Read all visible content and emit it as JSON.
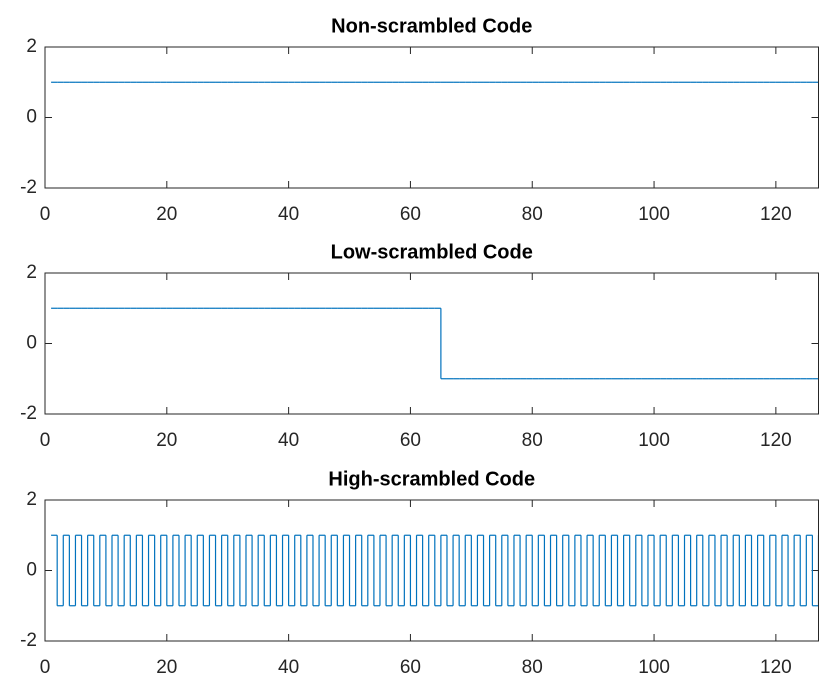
{
  "chart_data": [
    {
      "type": "stairs",
      "title": "Non-scrambled Code",
      "color": "#0072bd",
      "x": [
        1,
        2,
        3,
        4,
        5,
        6,
        7,
        8,
        9,
        10,
        11,
        12,
        13,
        14,
        15,
        16,
        17,
        18,
        19,
        20,
        21,
        22,
        23,
        24,
        25,
        26,
        27,
        28,
        29,
        30,
        31,
        32,
        33,
        34,
        35,
        36,
        37,
        38,
        39,
        40,
        41,
        42,
        43,
        44,
        45,
        46,
        47,
        48,
        49,
        50,
        51,
        52,
        53,
        54,
        55,
        56,
        57,
        58,
        59,
        60,
        61,
        62,
        63,
        64,
        65,
        66,
        67,
        68,
        69,
        70,
        71,
        72,
        73,
        74,
        75,
        76,
        77,
        78,
        79,
        80,
        81,
        82,
        83,
        84,
        85,
        86,
        87,
        88,
        89,
        90,
        91,
        92,
        93,
        94,
        95,
        96,
        97,
        98,
        99,
        100,
        101,
        102,
        103,
        104,
        105,
        106,
        107,
        108,
        109,
        110,
        111,
        112,
        113,
        114,
        115,
        116,
        117,
        118,
        119,
        120,
        121,
        122,
        123,
        124,
        125,
        126,
        127,
        128
      ],
      "values": [
        1,
        1,
        1,
        1,
        1,
        1,
        1,
        1,
        1,
        1,
        1,
        1,
        1,
        1,
        1,
        1,
        1,
        1,
        1,
        1,
        1,
        1,
        1,
        1,
        1,
        1,
        1,
        1,
        1,
        1,
        1,
        1,
        1,
        1,
        1,
        1,
        1,
        1,
        1,
        1,
        1,
        1,
        1,
        1,
        1,
        1,
        1,
        1,
        1,
        1,
        1,
        1,
        1,
        1,
        1,
        1,
        1,
        1,
        1,
        1,
        1,
        1,
        1,
        1,
        1,
        1,
        1,
        1,
        1,
        1,
        1,
        1,
        1,
        1,
        1,
        1,
        1,
        1,
        1,
        1,
        1,
        1,
        1,
        1,
        1,
        1,
        1,
        1,
        1,
        1,
        1,
        1,
        1,
        1,
        1,
        1,
        1,
        1,
        1,
        1,
        1,
        1,
        1,
        1,
        1,
        1,
        1,
        1,
        1,
        1,
        1,
        1,
        1,
        1,
        1,
        1,
        1,
        1,
        1,
        1,
        1,
        1,
        1,
        1,
        1,
        1,
        1,
        1
      ],
      "xlim": [
        0,
        127
      ],
      "xticks": [
        0,
        20,
        40,
        60,
        80,
        100,
        120
      ],
      "ylim": [
        -2,
        2
      ],
      "yticks": [
        -2,
        0,
        2
      ]
    },
    {
      "type": "stairs",
      "title": "Low-scrambled Code",
      "color": "#0072bd",
      "x": [
        1,
        2,
        3,
        4,
        5,
        6,
        7,
        8,
        9,
        10,
        11,
        12,
        13,
        14,
        15,
        16,
        17,
        18,
        19,
        20,
        21,
        22,
        23,
        24,
        25,
        26,
        27,
        28,
        29,
        30,
        31,
        32,
        33,
        34,
        35,
        36,
        37,
        38,
        39,
        40,
        41,
        42,
        43,
        44,
        45,
        46,
        47,
        48,
        49,
        50,
        51,
        52,
        53,
        54,
        55,
        56,
        57,
        58,
        59,
        60,
        61,
        62,
        63,
        64,
        65,
        66,
        67,
        68,
        69,
        70,
        71,
        72,
        73,
        74,
        75,
        76,
        77,
        78,
        79,
        80,
        81,
        82,
        83,
        84,
        85,
        86,
        87,
        88,
        89,
        90,
        91,
        92,
        93,
        94,
        95,
        96,
        97,
        98,
        99,
        100,
        101,
        102,
        103,
        104,
        105,
        106,
        107,
        108,
        109,
        110,
        111,
        112,
        113,
        114,
        115,
        116,
        117,
        118,
        119,
        120,
        121,
        122,
        123,
        124,
        125,
        126,
        127,
        128
      ],
      "values": [
        1,
        1,
        1,
        1,
        1,
        1,
        1,
        1,
        1,
        1,
        1,
        1,
        1,
        1,
        1,
        1,
        1,
        1,
        1,
        1,
        1,
        1,
        1,
        1,
        1,
        1,
        1,
        1,
        1,
        1,
        1,
        1,
        1,
        1,
        1,
        1,
        1,
        1,
        1,
        1,
        1,
        1,
        1,
        1,
        1,
        1,
        1,
        1,
        1,
        1,
        1,
        1,
        1,
        1,
        1,
        1,
        1,
        1,
        1,
        1,
        1,
        1,
        1,
        1,
        -1,
        -1,
        -1,
        -1,
        -1,
        -1,
        -1,
        -1,
        -1,
        -1,
        -1,
        -1,
        -1,
        -1,
        -1,
        -1,
        -1,
        -1,
        -1,
        -1,
        -1,
        -1,
        -1,
        -1,
        -1,
        -1,
        -1,
        -1,
        -1,
        -1,
        -1,
        -1,
        -1,
        -1,
        -1,
        -1,
        -1,
        -1,
        -1,
        -1,
        -1,
        -1,
        -1,
        -1,
        -1,
        -1,
        -1,
        -1,
        -1,
        -1,
        -1,
        -1,
        -1,
        -1,
        -1,
        -1,
        -1,
        -1,
        -1,
        -1,
        -1,
        -1,
        -1,
        -1
      ],
      "xlim": [
        0,
        127
      ],
      "xticks": [
        0,
        20,
        40,
        60,
        80,
        100,
        120
      ],
      "ylim": [
        -2,
        2
      ],
      "yticks": [
        -2,
        0,
        2
      ]
    },
    {
      "type": "stairs",
      "title": "High-scrambled Code",
      "color": "#0072bd",
      "x": [
        1,
        2,
        3,
        4,
        5,
        6,
        7,
        8,
        9,
        10,
        11,
        12,
        13,
        14,
        15,
        16,
        17,
        18,
        19,
        20,
        21,
        22,
        23,
        24,
        25,
        26,
        27,
        28,
        29,
        30,
        31,
        32,
        33,
        34,
        35,
        36,
        37,
        38,
        39,
        40,
        41,
        42,
        43,
        44,
        45,
        46,
        47,
        48,
        49,
        50,
        51,
        52,
        53,
        54,
        55,
        56,
        57,
        58,
        59,
        60,
        61,
        62,
        63,
        64,
        65,
        66,
        67,
        68,
        69,
        70,
        71,
        72,
        73,
        74,
        75,
        76,
        77,
        78,
        79,
        80,
        81,
        82,
        83,
        84,
        85,
        86,
        87,
        88,
        89,
        90,
        91,
        92,
        93,
        94,
        95,
        96,
        97,
        98,
        99,
        100,
        101,
        102,
        103,
        104,
        105,
        106,
        107,
        108,
        109,
        110,
        111,
        112,
        113,
        114,
        115,
        116,
        117,
        118,
        119,
        120,
        121,
        122,
        123,
        124,
        125,
        126,
        127,
        128
      ],
      "values": [
        1,
        -1,
        1,
        -1,
        1,
        -1,
        1,
        -1,
        1,
        -1,
        1,
        -1,
        1,
        -1,
        1,
        -1,
        1,
        -1,
        1,
        -1,
        1,
        -1,
        1,
        -1,
        1,
        -1,
        1,
        -1,
        1,
        -1,
        1,
        -1,
        1,
        -1,
        1,
        -1,
        1,
        -1,
        1,
        -1,
        1,
        -1,
        1,
        -1,
        1,
        -1,
        1,
        -1,
        1,
        -1,
        1,
        -1,
        1,
        -1,
        1,
        -1,
        1,
        -1,
        1,
        -1,
        1,
        -1,
        1,
        -1,
        1,
        -1,
        1,
        -1,
        1,
        -1,
        1,
        -1,
        1,
        -1,
        1,
        -1,
        1,
        -1,
        1,
        -1,
        1,
        -1,
        1,
        -1,
        1,
        -1,
        1,
        -1,
        1,
        -1,
        1,
        -1,
        1,
        -1,
        1,
        -1,
        1,
        -1,
        1,
        -1,
        1,
        -1,
        1,
        -1,
        1,
        -1,
        1,
        -1,
        1,
        -1,
        1,
        -1,
        1,
        -1,
        1,
        -1,
        1,
        -1,
        1,
        -1,
        1,
        -1,
        1,
        -1,
        1,
        -1,
        1,
        -1
      ],
      "xlim": [
        0,
        127
      ],
      "xticks": [
        0,
        20,
        40,
        60,
        80,
        100,
        120
      ],
      "ylim": [
        -2,
        2
      ],
      "yticks": [
        -2,
        0,
        2
      ]
    }
  ]
}
